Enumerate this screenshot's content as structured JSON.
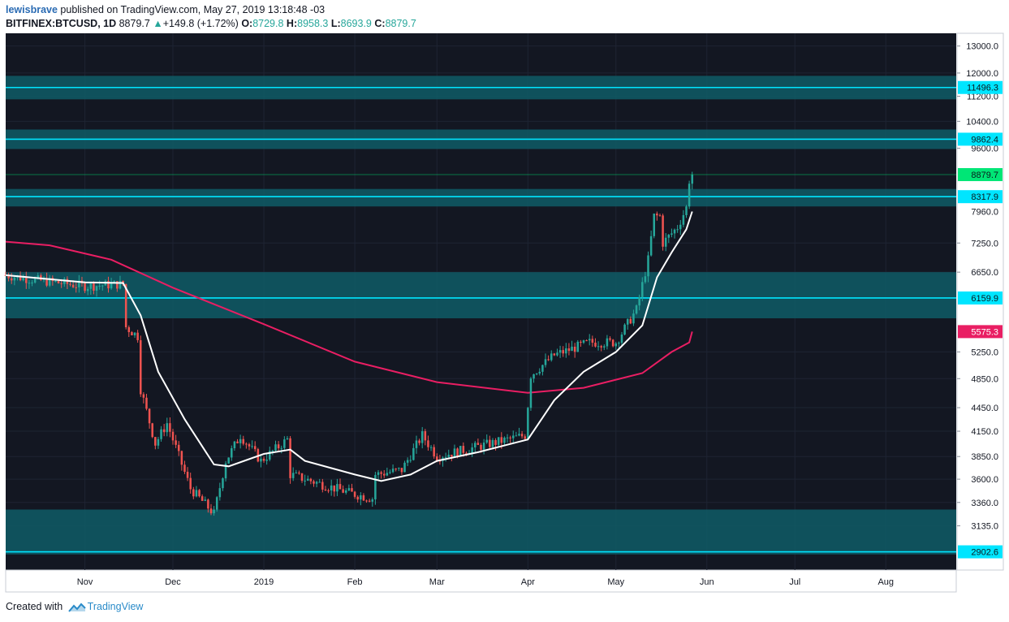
{
  "header": {
    "user": "lewisbrave",
    "published_text": "published on TradingView.com, May 27, 2019 13:18:48 -03",
    "symbol": "BITFINEX:BTCUSD, 1D",
    "last": "8879.7",
    "change": "+149.8 (+1.72%)",
    "o_label": "O:",
    "o_value": "8729.8",
    "h_label": "H:",
    "h_value": "8958.3",
    "l_label": "L:",
    "l_value": "8693.9",
    "c_label": "C:",
    "c_value": "8879.7"
  },
  "footer": {
    "created_with": "Created with",
    "brand": "TradingView"
  },
  "colors": {
    "background": "#131722",
    "grid": "#1e2433",
    "zone": "#0f5c66",
    "zone_line": "#00e5ff",
    "candle_up": "#26a69a",
    "candle_down": "#ef5350",
    "ema_short": "#ffffff",
    "ma_long": "#e91e63",
    "last_price": "#00e676"
  },
  "chart_data": {
    "type": "candlestick",
    "title": "BITFINEX:BTCUSD, 1D",
    "y_scale": "log",
    "ylim": [
      2750,
      13500
    ],
    "y_ticks": [
      13000,
      12000,
      11200,
      10400,
      9600,
      7250,
      6650,
      5250,
      4850,
      4450,
      4150,
      3850,
      3600,
      3360,
      3135
    ],
    "y_tick_labels": [
      "13000.0",
      "12000.0",
      "11200.0",
      "10400.0",
      "9600.0",
      "7250.0",
      "6650.0",
      "5250.0",
      "4850.0",
      "4450.0",
      "4150.0",
      "3850.0",
      "3600.0",
      "3360.0",
      "3135.0"
    ],
    "x_range": [
      "2018-10-05",
      "2019-08-25"
    ],
    "x_ticks": [
      {
        "date": "2018-11-01",
        "label": "Nov"
      },
      {
        "date": "2018-12-01",
        "label": "Dec"
      },
      {
        "date": "2019-01-01",
        "label": "2019"
      },
      {
        "date": "2019-02-01",
        "label": "Feb"
      },
      {
        "date": "2019-03-01",
        "label": "Mar"
      },
      {
        "date": "2019-04-01",
        "label": "Apr"
      },
      {
        "date": "2019-05-01",
        "label": "May"
      },
      {
        "date": "2019-06-01",
        "label": "Jun"
      },
      {
        "date": "2019-07-01",
        "label": "Jul"
      },
      {
        "date": "2019-08-01",
        "label": "Aug"
      }
    ],
    "zones": [
      {
        "low": 11100,
        "high": 11900,
        "line": 11496.3,
        "label": "11496.3"
      },
      {
        "low": 9580,
        "high": 10150,
        "line": 9862.4,
        "label": "9862.4"
      },
      {
        "low": 8080,
        "high": 8510,
        "line": 8317.9,
        "label": "8317.9"
      },
      {
        "low": 5800,
        "high": 6650,
        "line": 6159.9,
        "label": "6159.9"
      },
      {
        "low": 2880,
        "high": 3290,
        "line": 2902.6,
        "label": "2902.6"
      }
    ],
    "price_labels": [
      {
        "value": 8879.7,
        "label": "8879.7",
        "kind": "last"
      },
      {
        "value": 7960.0,
        "label": "7960.0",
        "kind": "ema"
      },
      {
        "value": 5575.3,
        "label": "5575.3",
        "kind": "ma"
      }
    ],
    "key_points": [
      {
        "date": "2018-10-05",
        "close": 6590
      },
      {
        "date": "2018-10-15",
        "close": 6500
      },
      {
        "date": "2018-11-01",
        "close": 6380
      },
      {
        "date": "2018-11-14",
        "close": 6420
      },
      {
        "date": "2018-11-15",
        "close": 5650
      },
      {
        "date": "2018-11-19",
        "close": 5500
      },
      {
        "date": "2018-11-20",
        "close": 4700
      },
      {
        "date": "2018-11-25",
        "close": 4000
      },
      {
        "date": "2018-11-29",
        "close": 4250
      },
      {
        "date": "2018-12-07",
        "close": 3500
      },
      {
        "date": "2018-12-15",
        "close": 3250
      },
      {
        "date": "2018-12-19",
        "close": 3800
      },
      {
        "date": "2018-12-24",
        "close": 4100
      },
      {
        "date": "2018-12-31",
        "close": 3800
      },
      {
        "date": "2019-01-09",
        "close": 4050
      },
      {
        "date": "2019-01-10",
        "close": 3650
      },
      {
        "date": "2019-01-31",
        "close": 3450
      },
      {
        "date": "2019-02-07",
        "close": 3400
      },
      {
        "date": "2019-02-08",
        "close": 3650
      },
      {
        "date": "2019-02-17",
        "close": 3700
      },
      {
        "date": "2019-02-24",
        "close": 4100
      },
      {
        "date": "2019-03-01",
        "close": 3850
      },
      {
        "date": "2019-03-31",
        "close": 4100
      },
      {
        "date": "2019-04-02",
        "close": 4900
      },
      {
        "date": "2019-04-10",
        "close": 5200
      },
      {
        "date": "2019-04-22",
        "close": 5400
      },
      {
        "date": "2019-05-01",
        "close": 5400
      },
      {
        "date": "2019-05-08",
        "close": 5950
      },
      {
        "date": "2019-05-12",
        "close": 6900
      },
      {
        "date": "2019-05-14",
        "close": 7850
      },
      {
        "date": "2019-05-16",
        "close": 7850
      },
      {
        "date": "2019-05-17",
        "close": 7250
      },
      {
        "date": "2019-05-22",
        "close": 7600
      },
      {
        "date": "2019-05-25",
        "close": 8050
      },
      {
        "date": "2019-05-26",
        "close": 8729.8
      },
      {
        "date": "2019-05-27",
        "close": 8879.7
      }
    ],
    "series": [
      {
        "type": "candles"
      },
      {
        "type": "line",
        "points": [
          {
            "date": "2018-10-05",
            "value": 6590
          },
          {
            "date": "2018-11-01",
            "value": 6450
          },
          {
            "date": "2018-11-14",
            "value": 6440
          },
          {
            "date": "2018-11-20",
            "value": 5850
          },
          {
            "date": "2018-11-26",
            "value": 4950
          },
          {
            "date": "2018-12-05",
            "value": 4300
          },
          {
            "date": "2018-12-15",
            "value": 3760
          },
          {
            "date": "2018-12-20",
            "value": 3740
          },
          {
            "date": "2019-01-01",
            "value": 3880
          },
          {
            "date": "2019-01-10",
            "value": 3930
          },
          {
            "date": "2019-01-15",
            "value": 3800
          },
          {
            "date": "2019-02-01",
            "value": 3650
          },
          {
            "date": "2019-02-10",
            "value": 3580
          },
          {
            "date": "2019-02-20",
            "value": 3650
          },
          {
            "date": "2019-03-01",
            "value": 3800
          },
          {
            "date": "2019-03-15",
            "value": 3900
          },
          {
            "date": "2019-04-01",
            "value": 4050
          },
          {
            "date": "2019-04-10",
            "value": 4550
          },
          {
            "date": "2019-04-20",
            "value": 4950
          },
          {
            "date": "2019-05-01",
            "value": 5250
          },
          {
            "date": "2019-05-10",
            "value": 5680
          },
          {
            "date": "2019-05-15",
            "value": 6550
          },
          {
            "date": "2019-05-20",
            "value": 7050
          },
          {
            "date": "2019-05-25",
            "value": 7550
          },
          {
            "date": "2019-05-27",
            "value": 7960
          }
        ]
      },
      {
        "type": "line",
        "points": [
          {
            "date": "2018-10-05",
            "value": 7280
          },
          {
            "date": "2018-10-20",
            "value": 7200
          },
          {
            "date": "2018-11-10",
            "value": 6900
          },
          {
            "date": "2018-12-01",
            "value": 6350
          },
          {
            "date": "2019-01-01",
            "value": 5700
          },
          {
            "date": "2019-02-01",
            "value": 5100
          },
          {
            "date": "2019-03-01",
            "value": 4800
          },
          {
            "date": "2019-04-01",
            "value": 4650
          },
          {
            "date": "2019-04-20",
            "value": 4720
          },
          {
            "date": "2019-05-10",
            "value": 4930
          },
          {
            "date": "2019-05-20",
            "value": 5250
          },
          {
            "date": "2019-05-26",
            "value": 5400
          },
          {
            "date": "2019-05-27",
            "value": 5575.3
          }
        ]
      }
    ]
  }
}
